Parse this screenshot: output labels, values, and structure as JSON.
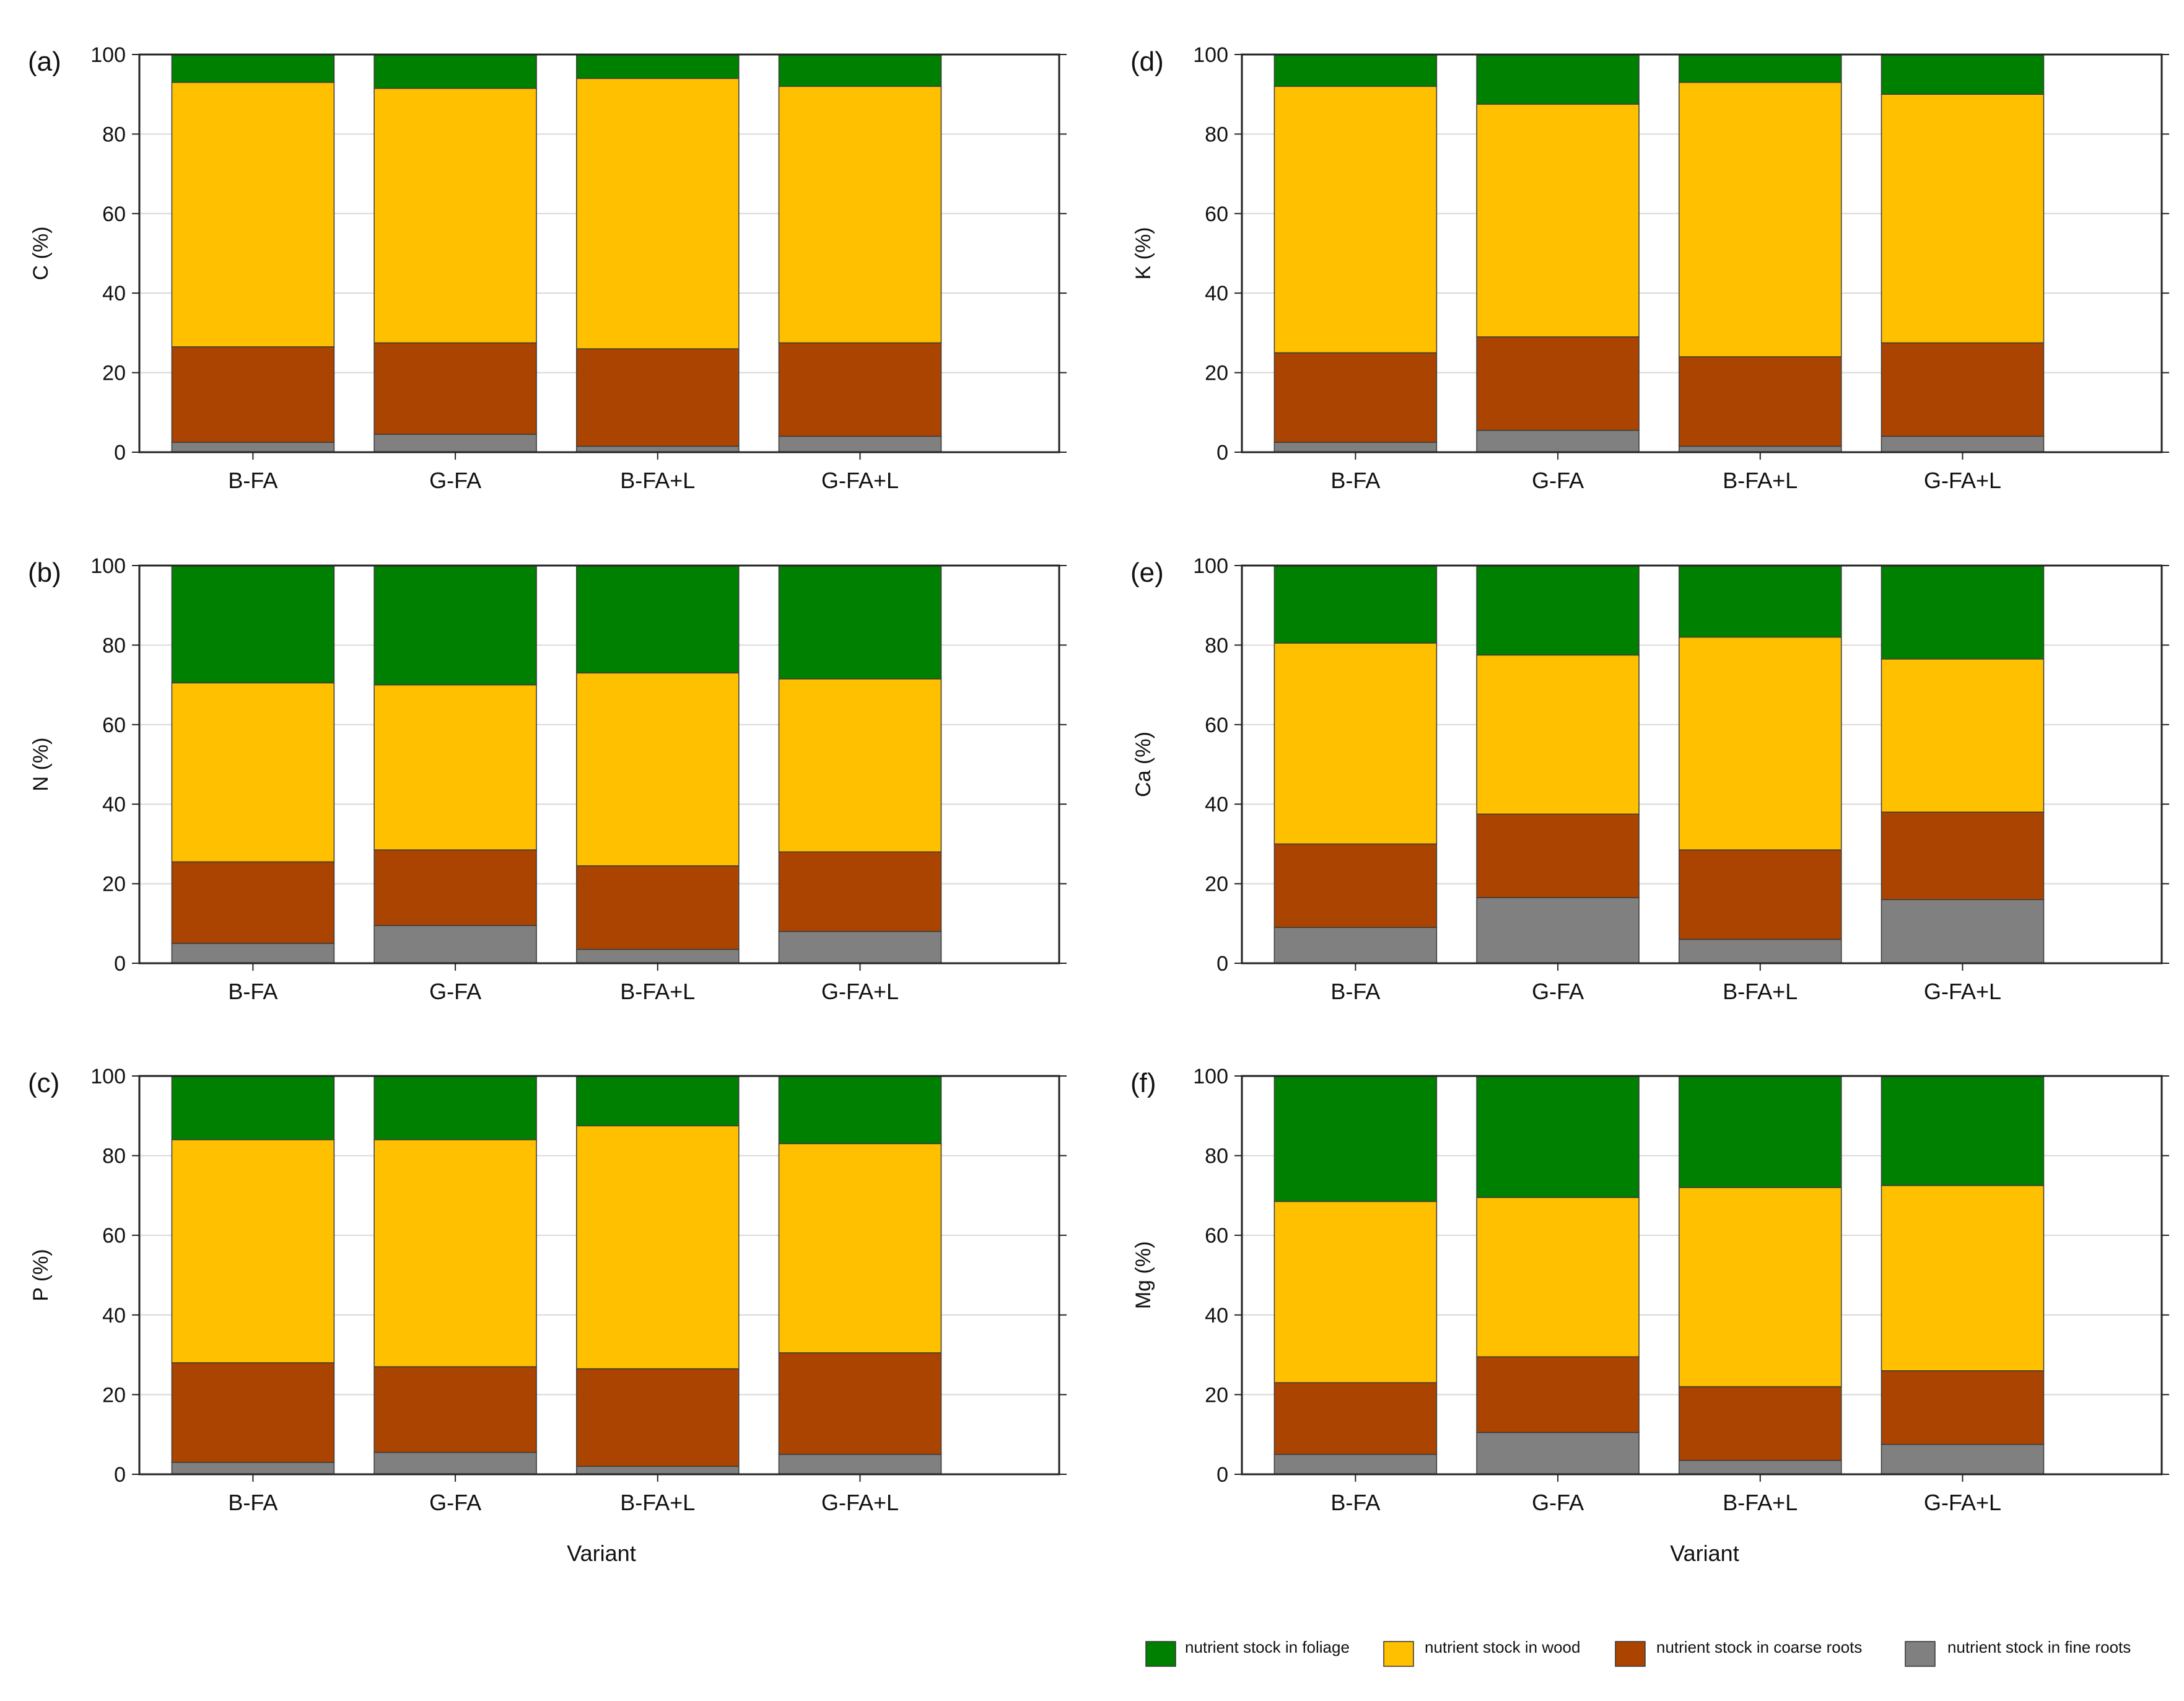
{
  "colors": {
    "foliage": "#008000",
    "wood": "#FFC000",
    "coarse": "#AA4400",
    "fine": "#808080",
    "grid": "#d9d9d9",
    "axis": "#222222"
  },
  "legend": {
    "foliage": "nutrient stock in foliage",
    "wood": "nutrient stock in wood",
    "coarse": "nutrient stock in  coarse roots",
    "fine": "nutrient stock in fine roots"
  },
  "xlabel": "Variant",
  "chart_data": [
    {
      "type": "bar",
      "stacked": true,
      "panel": "(a)",
      "ylabel": "C (%)",
      "ylim": [
        0,
        100
      ],
      "yticks": [
        "0",
        "20",
        "40",
        "60",
        "80",
        "100"
      ],
      "categories": [
        "B-FA",
        "G-FA",
        "B-FA+L",
        "G-FA+L"
      ],
      "series": [
        {
          "name": "nutrient stock in fine roots",
          "values": [
            2.5,
            4.5,
            1.5,
            4
          ]
        },
        {
          "name": "nutrient stock in  coarse roots",
          "values": [
            24,
            23,
            24.5,
            23.5
          ]
        },
        {
          "name": "nutrient stock in wood",
          "values": [
            66.5,
            64,
            68,
            64.5
          ]
        },
        {
          "name": "nutrient stock in foliage",
          "values": [
            7,
            8.5,
            6,
            8
          ]
        }
      ]
    },
    {
      "type": "bar",
      "stacked": true,
      "panel": "(b)",
      "ylabel": "N (%)",
      "ylim": [
        0,
        100
      ],
      "yticks": [
        "0",
        "20",
        "40",
        "60",
        "80",
        "100"
      ],
      "categories": [
        "B-FA",
        "G-FA",
        "B-FA+L",
        "G-FA+L"
      ],
      "series": [
        {
          "name": "nutrient stock in fine roots",
          "values": [
            5,
            9.5,
            3.5,
            8
          ]
        },
        {
          "name": "nutrient stock in  coarse roots",
          "values": [
            20.5,
            19,
            21,
            20
          ]
        },
        {
          "name": "nutrient stock in wood",
          "values": [
            45,
            41.5,
            48.5,
            43.5
          ]
        },
        {
          "name": "nutrient stock in foliage",
          "values": [
            29.5,
            30,
            27,
            28.5
          ]
        }
      ]
    },
    {
      "type": "bar",
      "stacked": true,
      "panel": "(c)",
      "ylabel": "P (%)",
      "ylim": [
        0,
        100
      ],
      "yticks": [
        "0",
        "20",
        "40",
        "60",
        "80",
        "100"
      ],
      "categories": [
        "B-FA",
        "G-FA",
        "B-FA+L",
        "G-FA+L"
      ],
      "series": [
        {
          "name": "nutrient stock in fine roots",
          "values": [
            3,
            5.5,
            2,
            5
          ]
        },
        {
          "name": "nutrient stock in  coarse roots",
          "values": [
            25,
            21.5,
            24.5,
            25.5
          ]
        },
        {
          "name": "nutrient stock in wood",
          "values": [
            56,
            57,
            61,
            52.5
          ]
        },
        {
          "name": "nutrient stock in foliage",
          "values": [
            16,
            16,
            12.5,
            17
          ]
        }
      ]
    },
    {
      "type": "bar",
      "stacked": true,
      "panel": "(d)",
      "ylabel": "K (%)",
      "ylim": [
        0,
        100
      ],
      "yticks": [
        "0",
        "20",
        "40",
        "60",
        "80",
        "100"
      ],
      "categories": [
        "B-FA",
        "G-FA",
        "B-FA+L",
        "G-FA+L"
      ],
      "series": [
        {
          "name": "nutrient stock in fine roots",
          "values": [
            2.5,
            5.5,
            1.5,
            4
          ]
        },
        {
          "name": "nutrient stock in  coarse roots",
          "values": [
            22.5,
            23.5,
            22.5,
            23.5
          ]
        },
        {
          "name": "nutrient stock in wood",
          "values": [
            67,
            58.5,
            69,
            62.5
          ]
        },
        {
          "name": "nutrient stock in foliage",
          "values": [
            8,
            12.5,
            7,
            10
          ]
        }
      ]
    },
    {
      "type": "bar",
      "stacked": true,
      "panel": "(e)",
      "ylabel": "Ca (%)",
      "ylim": [
        0,
        100
      ],
      "yticks": [
        "0",
        "20",
        "40",
        "60",
        "80",
        "100"
      ],
      "categories": [
        "B-FA",
        "G-FA",
        "B-FA+L",
        "G-FA+L"
      ],
      "series": [
        {
          "name": "nutrient stock in fine roots",
          "values": [
            9,
            16.5,
            6,
            16
          ]
        },
        {
          "name": "nutrient stock in  coarse roots",
          "values": [
            21,
            21,
            22.5,
            22
          ]
        },
        {
          "name": "nutrient stock in wood",
          "values": [
            50.5,
            40,
            53.5,
            38.5
          ]
        },
        {
          "name": "nutrient stock in foliage",
          "values": [
            19.5,
            22.5,
            18,
            23.5
          ]
        }
      ]
    },
    {
      "type": "bar",
      "stacked": true,
      "panel": "(f)",
      "ylabel": "Mg (%)",
      "ylim": [
        0,
        100
      ],
      "yticks": [
        "0",
        "20",
        "40",
        "60",
        "80",
        "100"
      ],
      "categories": [
        "B-FA",
        "G-FA",
        "B-FA+L",
        "G-FA+L"
      ],
      "series": [
        {
          "name": "nutrient stock in fine roots",
          "values": [
            5,
            10.5,
            3.5,
            7.5
          ]
        },
        {
          "name": "nutrient stock in  coarse roots",
          "values": [
            18,
            19,
            18.5,
            18.5
          ]
        },
        {
          "name": "nutrient stock in wood",
          "values": [
            45.5,
            40,
            50,
            46.5
          ]
        },
        {
          "name": "nutrient stock in foliage",
          "values": [
            31.5,
            30.5,
            28,
            27.5
          ]
        }
      ]
    }
  ]
}
